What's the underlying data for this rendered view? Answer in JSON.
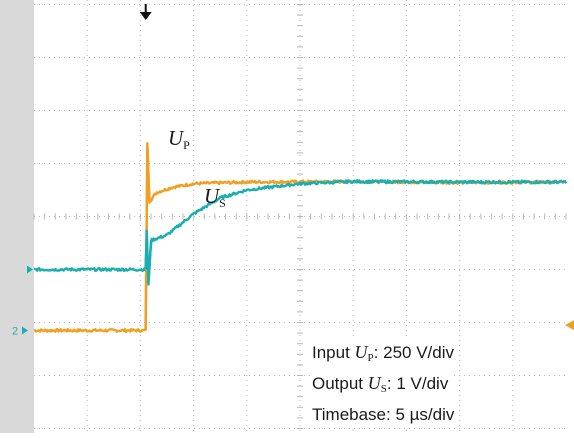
{
  "chart_data": {
    "type": "line",
    "title": "",
    "xlabel": "",
    "ylabel": "",
    "grid": true,
    "x_divisions": 10,
    "y_divisions": 8,
    "series": [
      {
        "name": "U_P",
        "label_main": "U",
        "label_sub": "P",
        "color": "#f0a020",
        "unit": "div",
        "x": [
          0.0,
          2.1,
          2.13,
          2.17,
          2.3,
          2.6,
          3.0,
          4.0,
          6.0,
          8.0,
          10.0
        ],
        "y": [
          -2.15,
          -2.15,
          1.4,
          0.28,
          0.45,
          0.55,
          0.62,
          0.65,
          0.66,
          0.64,
          0.65
        ]
      },
      {
        "name": "U_S",
        "label_main": "U",
        "label_sub": "S",
        "color": "#1aaeb0",
        "unit": "div",
        "x": [
          0.0,
          2.1,
          2.12,
          2.15,
          2.2,
          2.5,
          3.0,
          3.5,
          4.0,
          5.0,
          6.0,
          8.0,
          10.0
        ],
        "y": [
          -1.0,
          -1.0,
          -0.25,
          -1.3,
          -0.45,
          -0.35,
          0.05,
          0.35,
          0.5,
          0.62,
          0.66,
          0.65,
          0.65
        ]
      }
    ],
    "annotations": {
      "input_label": "Input",
      "input_sym": "U",
      "input_sub": "P",
      "input_scale": ": 250 V/div",
      "output_label": "Output",
      "output_sym": "U",
      "output_sub": "S",
      "output_scale": ": 1 V/div",
      "timebase": "Timebase: 5 µs/div",
      "channel_marker": "2"
    },
    "colors": {
      "grid": "#b8b8b8",
      "frame": "#d9d9d9",
      "input": "#f0a020",
      "output": "#1aaeb0",
      "marker": "#111111"
    }
  }
}
